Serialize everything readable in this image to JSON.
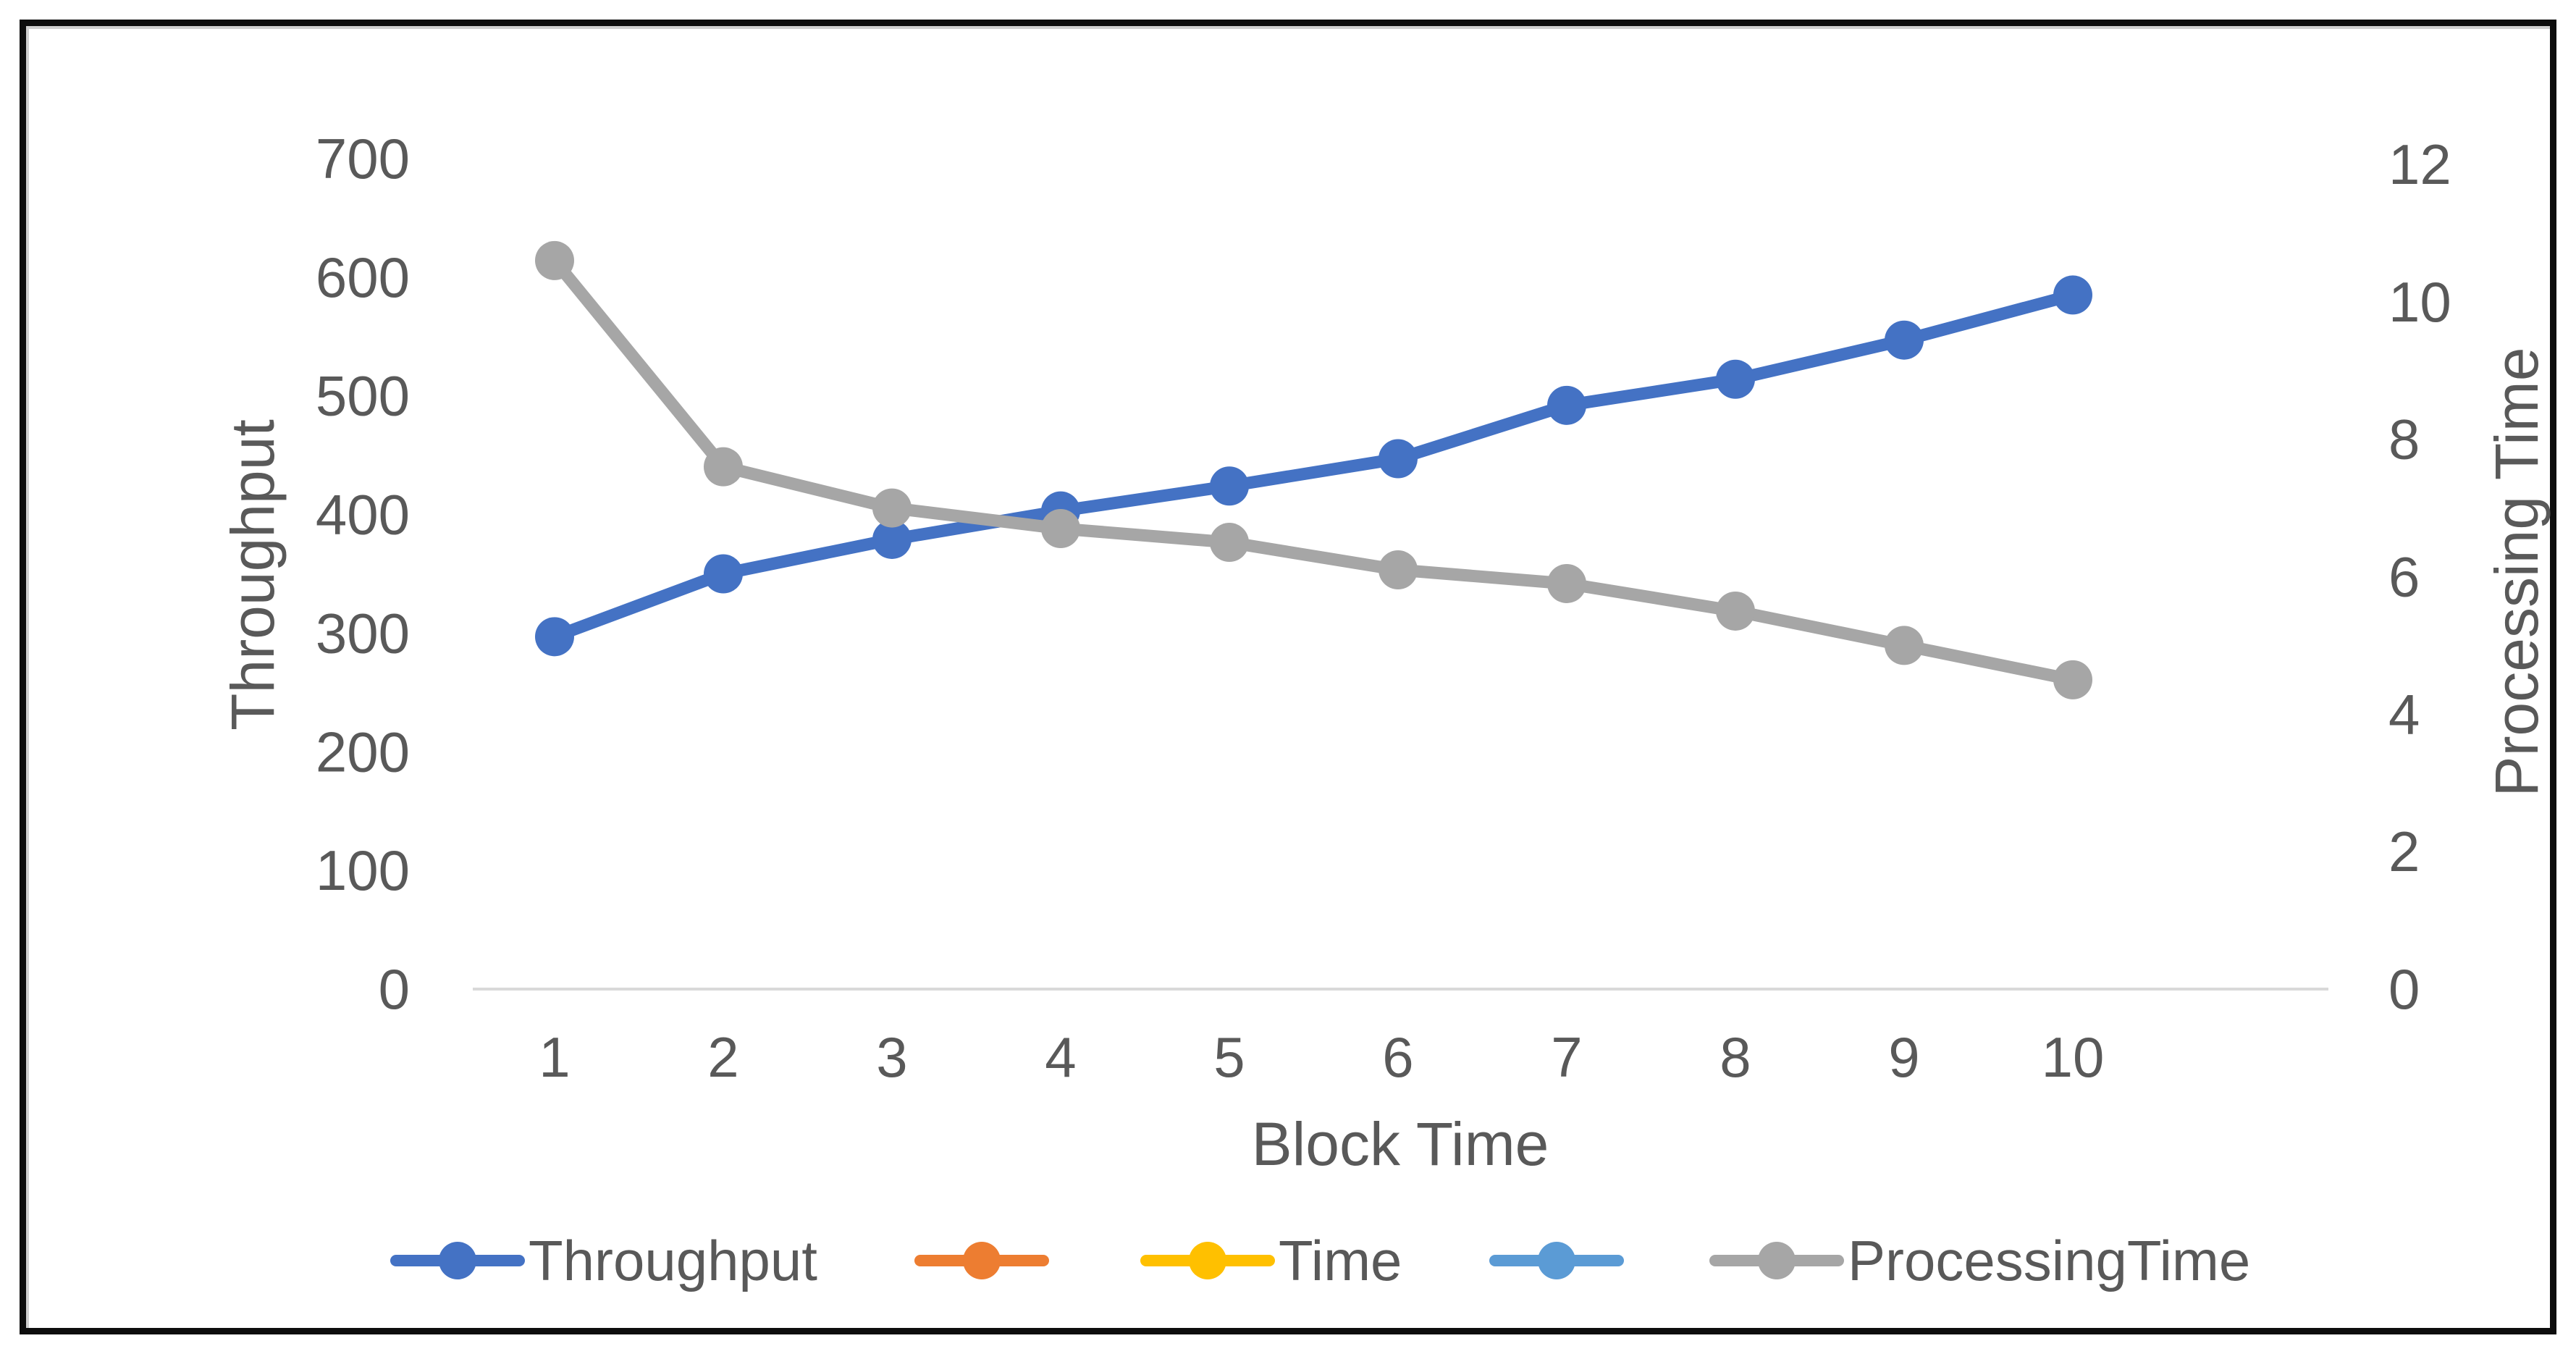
{
  "chart_data": {
    "type": "line",
    "title": "",
    "x": {
      "label": "Block Time",
      "categories": [
        "1",
        "2",
        "3",
        "4",
        "5",
        "6",
        "7",
        "8",
        "9",
        "10"
      ]
    },
    "y_left": {
      "label": "Throughput",
      "min": 0,
      "max": 700,
      "step": 100
    },
    "y_right": {
      "label": "Processing Time",
      "min": 0,
      "max": 12,
      "step": 2
    },
    "series": [
      {
        "name": "Throughput",
        "color": "#4472C4",
        "axis": "left",
        "marker": "circle",
        "values": [
          297,
          350,
          379,
          403,
          424,
          447,
          492,
          514,
          547,
          585
        ]
      },
      {
        "name": "",
        "color": "#ED7D31",
        "axis": "left",
        "marker": "circle",
        "values": []
      },
      {
        "name": "Time",
        "color": "#FFC000",
        "axis": "left",
        "marker": "circle",
        "values": []
      },
      {
        "name": "",
        "color": "#5B9BD5",
        "axis": "left",
        "marker": "circle",
        "values": []
      },
      {
        "name": "ProcessingTime",
        "color": "#A6A6A6",
        "axis": "right",
        "marker": "circle",
        "values": [
          10.6,
          7.6,
          7.0,
          6.7,
          6.5,
          6.1,
          5.9,
          5.5,
          5.0,
          4.5
        ]
      }
    ],
    "legend_position": "bottom",
    "grid": false,
    "axis_line_color": "#D9D9D9",
    "text_color": "#595959",
    "frame_color": "#0d0d0d"
  }
}
